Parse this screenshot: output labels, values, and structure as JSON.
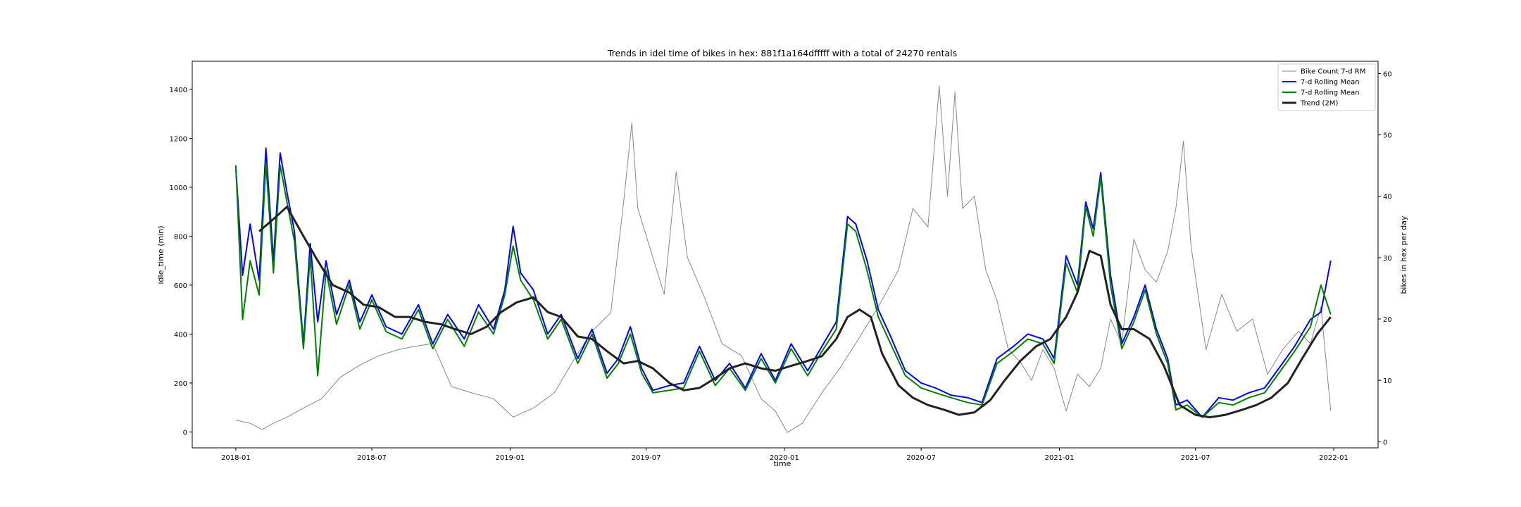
{
  "chart_data": {
    "type": "line",
    "title": "Trends in idel time of bikes in hex: 881f1a164dfffff with a total of 24270 rentals",
    "xlabel": "time",
    "ylabel": "idle_time (min)",
    "y2label": "bikes in hex per day",
    "xlim": [
      "2017-11-04",
      "2022-03-01"
    ],
    "ylim": [
      -65,
      1515
    ],
    "y2lim": [
      -1,
      62
    ],
    "x_ticks": [
      "2018-01",
      "2018-07",
      "2019-01",
      "2019-07",
      "2020-01",
      "2020-07",
      "2021-01",
      "2021-07",
      "2022-01"
    ],
    "y_ticks": [
      0,
      200,
      400,
      600,
      800,
      1000,
      1200,
      1400
    ],
    "y2_ticks": [
      0,
      10,
      20,
      30,
      40,
      50,
      60
    ],
    "grid": false,
    "legend_position": "top-right",
    "legend": [
      {
        "label": "Bike Count 7-d RM",
        "color": "#888888"
      },
      {
        "label": "7-d Rolling Mean",
        "color": "#0000ff"
      },
      {
        "label": "7-d Rolling Mean",
        "color": "#008000"
      },
      {
        "label": "Trend (2M)",
        "color": "#222222"
      }
    ],
    "series": [
      {
        "name": "Bike Count 7-d RM",
        "axis": "right",
        "color": "#888888",
        "x": [
          "2018-01-01",
          "2018-01-20",
          "2018-02-05",
          "2018-02-20",
          "2018-03-10",
          "2018-04-01",
          "2018-04-25",
          "2018-05-20",
          "2018-06-15",
          "2018-07-10",
          "2018-08-05",
          "2018-08-25",
          "2018-09-20",
          "2018-10-15",
          "2018-11-10",
          "2018-12-10",
          "2019-01-05",
          "2019-02-01",
          "2019-03-01",
          "2019-03-25",
          "2019-04-20",
          "2019-05-15",
          "2019-06-01",
          "2019-06-12",
          "2019-06-20",
          "2019-07-10",
          "2019-07-25",
          "2019-08-10",
          "2019-08-25",
          "2019-09-15",
          "2019-10-10",
          "2019-11-05",
          "2019-12-01",
          "2019-12-20",
          "2020-01-05",
          "2020-01-25",
          "2020-02-20",
          "2020-03-15",
          "2020-04-10",
          "2020-05-05",
          "2020-06-01",
          "2020-06-20",
          "2020-07-10",
          "2020-07-25",
          "2020-08-05",
          "2020-08-15",
          "2020-08-25",
          "2020-09-10",
          "2020-09-25",
          "2020-10-10",
          "2020-10-25",
          "2020-11-10",
          "2020-11-25",
          "2020-12-10",
          "2020-12-25",
          "2021-01-10",
          "2021-01-25",
          "2021-02-10",
          "2021-02-25",
          "2021-03-10",
          "2021-03-25",
          "2021-04-10",
          "2021-04-25",
          "2021-05-10",
          "2021-05-25",
          "2021-06-05",
          "2021-06-15",
          "2021-06-25",
          "2021-07-15",
          "2021-08-05",
          "2021-08-25",
          "2021-09-15",
          "2021-10-05",
          "2021-10-25",
          "2021-11-15",
          "2021-12-01",
          "2021-12-15",
          "2021-12-28"
        ],
        "values": [
          3.5,
          3.0,
          2.0,
          3.0,
          4.0,
          5.5,
          7.0,
          10.5,
          12.5,
          14.0,
          15.0,
          15.5,
          16.0,
          9.0,
          8.0,
          7.0,
          4.0,
          5.5,
          8.0,
          13.0,
          18.0,
          21.0,
          39.0,
          52.0,
          38.0,
          30.0,
          24.0,
          44.0,
          30.0,
          24.0,
          16.0,
          14.0,
          7.0,
          5.0,
          1.5,
          3.0,
          8.0,
          12.0,
          17.0,
          22.0,
          28.0,
          38.0,
          35.0,
          58.0,
          40.0,
          57.0,
          38.0,
          40.0,
          28.0,
          23.0,
          15.0,
          13.0,
          10.0,
          15.0,
          12.0,
          5.0,
          11.0,
          9.0,
          12.0,
          20.0,
          16.0,
          33.0,
          28.0,
          26.0,
          31.0,
          38.0,
          49.0,
          32.0,
          15.0,
          24.0,
          18.0,
          20.0,
          11.0,
          15.0,
          18.0,
          16.0,
          22.0,
          5.0
        ]
      },
      {
        "name": "7-d Rolling Mean",
        "axis": "left",
        "color": "#0000ff",
        "x": [
          "2018-01-01",
          "2018-01-10",
          "2018-01-20",
          "2018-02-01",
          "2018-02-10",
          "2018-02-20",
          "2018-03-01",
          "2018-03-10",
          "2018-03-20",
          "2018-04-01",
          "2018-04-10",
          "2018-04-20",
          "2018-05-01",
          "2018-05-15",
          "2018-06-01",
          "2018-06-15",
          "2018-07-01",
          "2018-07-20",
          "2018-08-10",
          "2018-09-01",
          "2018-09-20",
          "2018-10-10",
          "2018-11-01",
          "2018-11-20",
          "2018-12-10",
          "2018-12-25",
          "2019-01-05",
          "2019-01-15",
          "2019-02-01",
          "2019-02-20",
          "2019-03-10",
          "2019-04-01",
          "2019-04-20",
          "2019-05-10",
          "2019-05-25",
          "2019-06-10",
          "2019-06-25",
          "2019-07-10",
          "2019-08-01",
          "2019-08-20",
          "2019-09-10",
          "2019-10-01",
          "2019-10-20",
          "2019-11-10",
          "2019-12-01",
          "2019-12-20",
          "2020-01-10",
          "2020-02-01",
          "2020-02-20",
          "2020-03-10",
          "2020-03-25",
          "2020-04-05",
          "2020-04-20",
          "2020-05-05",
          "2020-05-20",
          "2020-06-10",
          "2020-07-01",
          "2020-07-20",
          "2020-08-10",
          "2020-09-01",
          "2020-09-20",
          "2020-10-10",
          "2020-11-01",
          "2020-11-20",
          "2020-12-10",
          "2020-12-25",
          "2021-01-10",
          "2021-01-25",
          "2021-02-05",
          "2021-02-15",
          "2021-02-25",
          "2021-03-10",
          "2021-03-25",
          "2021-04-10",
          "2021-04-25",
          "2021-05-10",
          "2021-05-25",
          "2021-06-05",
          "2021-06-20",
          "2021-07-10",
          "2021-08-01",
          "2021-08-20",
          "2021-09-10",
          "2021-10-01",
          "2021-10-20",
          "2021-11-10",
          "2021-12-01",
          "2021-12-15",
          "2021-12-28"
        ],
        "values": [
          1080,
          640,
          850,
          620,
          1160,
          700,
          1140,
          980,
          820,
          360,
          770,
          450,
          700,
          480,
          620,
          450,
          560,
          430,
          400,
          520,
          360,
          480,
          380,
          520,
          420,
          580,
          840,
          650,
          580,
          400,
          480,
          300,
          420,
          240,
          300,
          430,
          260,
          170,
          190,
          200,
          350,
          210,
          280,
          180,
          320,
          210,
          360,
          250,
          350,
          450,
          880,
          850,
          700,
          500,
          400,
          250,
          200,
          180,
          150,
          140,
          120,
          300,
          350,
          400,
          380,
          300,
          720,
          600,
          940,
          830,
          1060,
          640,
          360,
          470,
          600,
          420,
          300,
          110,
          130,
          60,
          140,
          130,
          160,
          180,
          260,
          350,
          460,
          490,
          700
        ]
      },
      {
        "name": "7-d Rolling Mean",
        "axis": "left",
        "color": "#008000",
        "x": [
          "2018-01-01",
          "2018-01-10",
          "2018-01-20",
          "2018-02-01",
          "2018-02-10",
          "2018-02-20",
          "2018-03-01",
          "2018-03-10",
          "2018-03-20",
          "2018-04-01",
          "2018-04-10",
          "2018-04-20",
          "2018-05-01",
          "2018-05-15",
          "2018-06-01",
          "2018-06-15",
          "2018-07-01",
          "2018-07-20",
          "2018-08-10",
          "2018-09-01",
          "2018-09-20",
          "2018-10-10",
          "2018-11-01",
          "2018-11-20",
          "2018-12-10",
          "2018-12-25",
          "2019-01-05",
          "2019-01-15",
          "2019-02-01",
          "2019-02-20",
          "2019-03-10",
          "2019-04-01",
          "2019-04-20",
          "2019-05-10",
          "2019-05-25",
          "2019-06-10",
          "2019-06-25",
          "2019-07-10",
          "2019-08-01",
          "2019-08-20",
          "2019-09-10",
          "2019-10-01",
          "2019-10-20",
          "2019-11-10",
          "2019-12-01",
          "2019-12-20",
          "2020-01-10",
          "2020-02-01",
          "2020-02-20",
          "2020-03-10",
          "2020-03-25",
          "2020-04-05",
          "2020-04-20",
          "2020-05-05",
          "2020-05-20",
          "2020-06-10",
          "2020-07-01",
          "2020-07-20",
          "2020-08-10",
          "2020-09-01",
          "2020-09-20",
          "2020-10-10",
          "2020-11-01",
          "2020-11-20",
          "2020-12-10",
          "2020-12-25",
          "2021-01-10",
          "2021-01-25",
          "2021-02-05",
          "2021-02-15",
          "2021-02-25",
          "2021-03-10",
          "2021-03-25",
          "2021-04-10",
          "2021-04-25",
          "2021-05-10",
          "2021-05-25",
          "2021-06-05",
          "2021-06-20",
          "2021-07-10",
          "2021-08-01",
          "2021-08-20",
          "2021-09-10",
          "2021-10-01",
          "2021-10-20",
          "2021-11-10",
          "2021-12-01",
          "2021-12-15",
          "2021-12-28"
        ],
        "values": [
          1090,
          460,
          700,
          560,
          1100,
          650,
          1090,
          940,
          780,
          340,
          720,
          230,
          660,
          440,
          600,
          420,
          540,
          410,
          380,
          500,
          340,
          460,
          350,
          490,
          400,
          560,
          760,
          620,
          540,
          380,
          460,
          280,
          400,
          220,
          280,
          400,
          240,
          160,
          170,
          180,
          330,
          190,
          260,
          170,
          300,
          200,
          340,
          230,
          330,
          420,
          850,
          820,
          660,
          470,
          370,
          230,
          180,
          160,
          140,
          120,
          110,
          280,
          330,
          380,
          360,
          280,
          690,
          570,
          920,
          800,
          1040,
          600,
          340,
          450,
          580,
          400,
          280,
          90,
          110,
          60,
          120,
          110,
          140,
          160,
          240,
          330,
          430,
          600,
          480
        ]
      },
      {
        "name": "Trend (2M)",
        "axis": "left",
        "color": "#222222",
        "x": [
          "2018-02-01",
          "2018-02-20",
          "2018-03-10",
          "2018-04-01",
          "2018-04-20",
          "2018-05-10",
          "2018-06-01",
          "2018-06-20",
          "2018-07-10",
          "2018-08-01",
          "2018-08-20",
          "2018-09-10",
          "2018-10-01",
          "2018-10-20",
          "2018-11-10",
          "2018-12-01",
          "2018-12-20",
          "2019-01-10",
          "2019-02-01",
          "2019-02-20",
          "2019-03-10",
          "2019-04-01",
          "2019-04-20",
          "2019-05-10",
          "2019-06-01",
          "2019-06-20",
          "2019-07-10",
          "2019-08-01",
          "2019-08-20",
          "2019-09-10",
          "2019-10-01",
          "2019-10-20",
          "2019-11-10",
          "2019-12-01",
          "2019-12-20",
          "2020-01-10",
          "2020-02-01",
          "2020-02-20",
          "2020-03-10",
          "2020-03-25",
          "2020-04-10",
          "2020-04-25",
          "2020-05-10",
          "2020-06-01",
          "2020-06-20",
          "2020-07-10",
          "2020-08-01",
          "2020-08-20",
          "2020-09-10",
          "2020-10-01",
          "2020-10-20",
          "2020-11-10",
          "2020-12-01",
          "2020-12-20",
          "2021-01-10",
          "2021-01-25",
          "2021-02-10",
          "2021-02-25",
          "2021-03-10",
          "2021-03-25",
          "2021-04-10",
          "2021-05-01",
          "2021-05-20",
          "2021-06-10",
          "2021-07-01",
          "2021-07-20",
          "2021-08-10",
          "2021-09-01",
          "2021-09-20",
          "2021-10-10",
          "2021-11-01",
          "2021-11-20",
          "2021-12-10",
          "2021-12-28"
        ],
        "values": [
          820,
          870,
          920,
          800,
          700,
          600,
          570,
          520,
          510,
          470,
          470,
          450,
          440,
          420,
          400,
          430,
          490,
          530,
          550,
          490,
          470,
          390,
          380,
          330,
          280,
          290,
          260,
          200,
          170,
          180,
          220,
          260,
          280,
          260,
          250,
          270,
          290,
          310,
          380,
          470,
          500,
          470,
          320,
          190,
          140,
          110,
          90,
          70,
          80,
          130,
          210,
          290,
          350,
          380,
          470,
          570,
          740,
          720,
          520,
          420,
          420,
          380,
          270,
          110,
          70,
          60,
          70,
          90,
          110,
          140,
          200,
          300,
          400,
          470
        ]
      }
    ]
  }
}
